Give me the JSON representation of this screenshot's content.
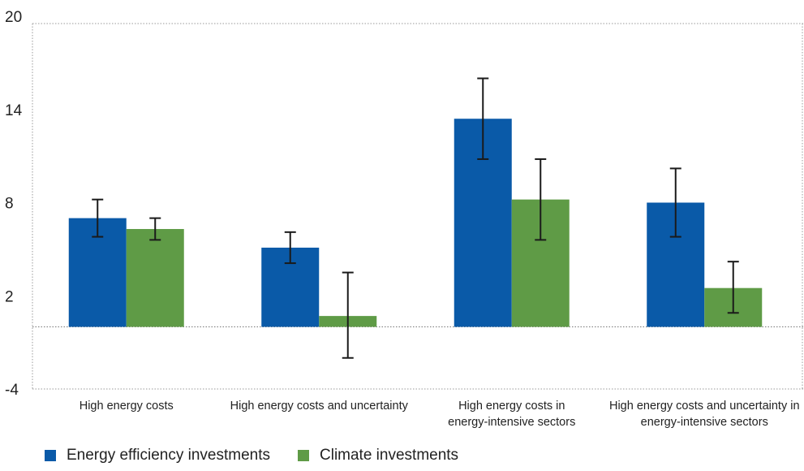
{
  "chart_data": {
    "type": "bar",
    "title": "",
    "xlabel": "",
    "ylabel": "",
    "ylim": [
      -4,
      20
    ],
    "yticks": [
      "20",
      "14",
      "8",
      "2",
      "-4"
    ],
    "grid": false,
    "legend_position": "bottom-left",
    "categories": [
      [
        "High energy costs"
      ],
      [
        "High energy costs and uncertainty"
      ],
      [
        "High energy costs in",
        "energy-intensive sectors"
      ],
      [
        "High energy costs and uncertainty in",
        "energy-intensive sectors"
      ]
    ],
    "series": [
      {
        "name": "Energy efficiency investments",
        "color": "#0a5aa8",
        "values": [
          7.0,
          5.1,
          13.4,
          8.0
        ],
        "error_low": [
          5.8,
          4.1,
          10.8,
          5.8
        ],
        "error_high": [
          8.2,
          6.1,
          16.0,
          10.2
        ]
      },
      {
        "name": "Climate investments",
        "color": "#5f9b46",
        "values": [
          6.3,
          0.7,
          8.2,
          2.5
        ],
        "error_low": [
          5.6,
          -2.0,
          5.6,
          0.9
        ],
        "error_high": [
          7.0,
          3.5,
          10.8,
          4.2
        ]
      }
    ]
  }
}
